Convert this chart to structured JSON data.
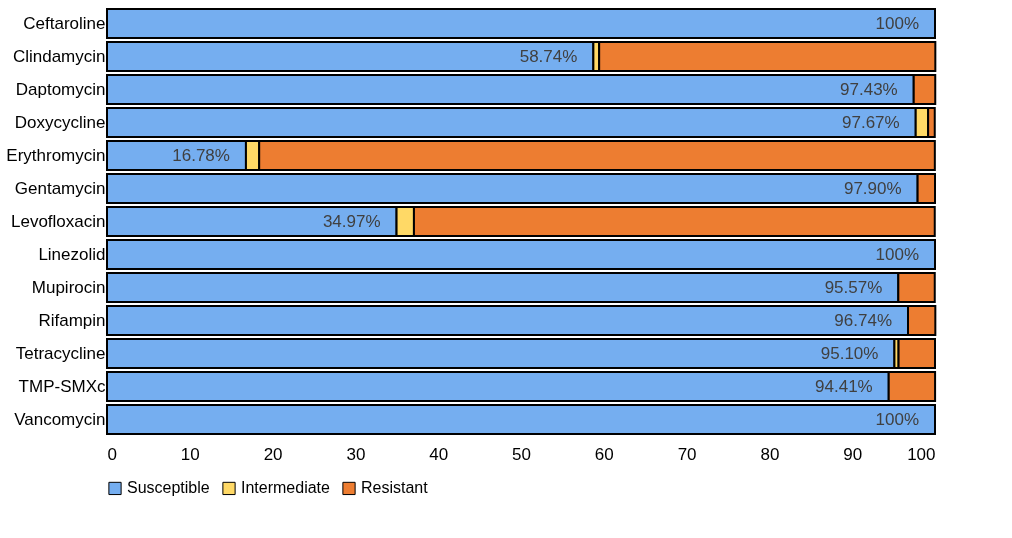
{
  "chart_data": {
    "type": "bar",
    "orientation": "horizontal",
    "stacked": true,
    "categories": [
      "Ceftaroline",
      "Clindamycin",
      "Daptomycin",
      "Doxycycline",
      "Erythromycin",
      "Gentamycin",
      "Levofloxacin",
      "Linezolid",
      "Mupirocin",
      "Rifampin",
      "Tetracycline",
      "TMP-SMXc",
      "Vancomycin"
    ],
    "series": [
      {
        "name": "Susceptible",
        "color": "#75aef0",
        "values": [
          100,
          58.74,
          97.43,
          97.67,
          16.78,
          97.9,
          34.97,
          100,
          95.57,
          96.74,
          95.1,
          94.41,
          100
        ],
        "value_labels": [
          "100%",
          "58.74%",
          "97.43%",
          "97.67%",
          "16.78%",
          "97.90%",
          "34.97%",
          "100%",
          "95.57%",
          "96.74%",
          "95.10%",
          "94.41%",
          "100%"
        ]
      },
      {
        "name": "Intermediate",
        "color": "#ffd966",
        "values": [
          null,
          0.7,
          null,
          1.5,
          1.6,
          null,
          2.1,
          null,
          null,
          null,
          0.5,
          null,
          null
        ]
      },
      {
        "name": "Resistant",
        "color": "#ed7d31",
        "values": [
          null,
          40.6,
          2.6,
          0.8,
          81.6,
          2.1,
          62.9,
          null,
          4.4,
          3.3,
          4.4,
          5.6,
          null
        ]
      }
    ],
    "xlim": [
      0,
      100
    ],
    "xticks": [
      0,
      10,
      20,
      30,
      40,
      50,
      60,
      70,
      80,
      90,
      100
    ],
    "grid": false,
    "legend": "bottom"
  }
}
